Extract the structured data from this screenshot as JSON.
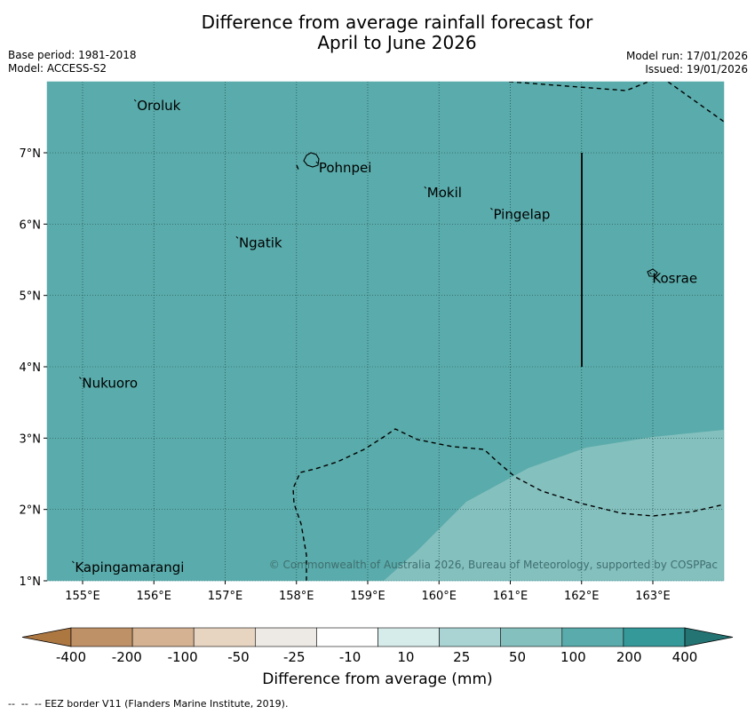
{
  "title_line1": "Difference from average rainfall forecast for",
  "title_line2": "April to June 2026",
  "base_period": "Base period: 1981-2018",
  "model": "Model: ACCESS-S2",
  "model_run": "Model run: 17/01/2026",
  "issued": "Issued: 19/01/2026",
  "copyright": "© Commonwealth of Australia 2026, Bureau of Meteorology, supported by COSPPac",
  "map": {
    "lon_ticks": [
      "155°E",
      "156°E",
      "157°E",
      "158°E",
      "159°E",
      "160°E",
      "161°E",
      "162°E",
      "163°E"
    ],
    "lat_ticks": [
      "7°N",
      "6°N",
      "5°N",
      "4°N",
      "3°N",
      "2°N",
      "1°N"
    ],
    "places": [
      {
        "name": "Oroluk",
        "lon": 155.75,
        "lat": 7.72
      },
      {
        "name": "Pohnpei",
        "lon": 158.3,
        "lat": 6.85
      },
      {
        "name": "Mokil",
        "lon": 159.82,
        "lat": 6.5
      },
      {
        "name": "Pingelap",
        "lon": 160.75,
        "lat": 6.2
      },
      {
        "name": "Ngatik",
        "lon": 157.18,
        "lat": 5.8
      },
      {
        "name": "Kosrae",
        "lon": 162.98,
        "lat": 5.3
      },
      {
        "name": "Nukuoro",
        "lon": 154.98,
        "lat": 3.83
      },
      {
        "name": "Kapingamarangi",
        "lon": 154.88,
        "lat": 1.25
      }
    ],
    "base_color": "#5aabab",
    "lighter_region_color": "#84c0be"
  },
  "colorbar": {
    "title": "Difference from average (mm)",
    "labels": [
      "-400",
      "-200",
      "-100",
      "-50",
      "-25",
      "-10",
      "10",
      "25",
      "50",
      "100",
      "200",
      "400"
    ],
    "colors": [
      "#ad7742",
      "#bf9167",
      "#d4b292",
      "#e7d4c1",
      "#ede9e4",
      "#ffffff",
      "#d6eceb",
      "#a9d4d3",
      "#84c0be",
      "#5aabab",
      "#35999a",
      "#257474"
    ]
  },
  "legend_note": "EEZ border V11 (Flanders Marine Institute, 2019)."
}
